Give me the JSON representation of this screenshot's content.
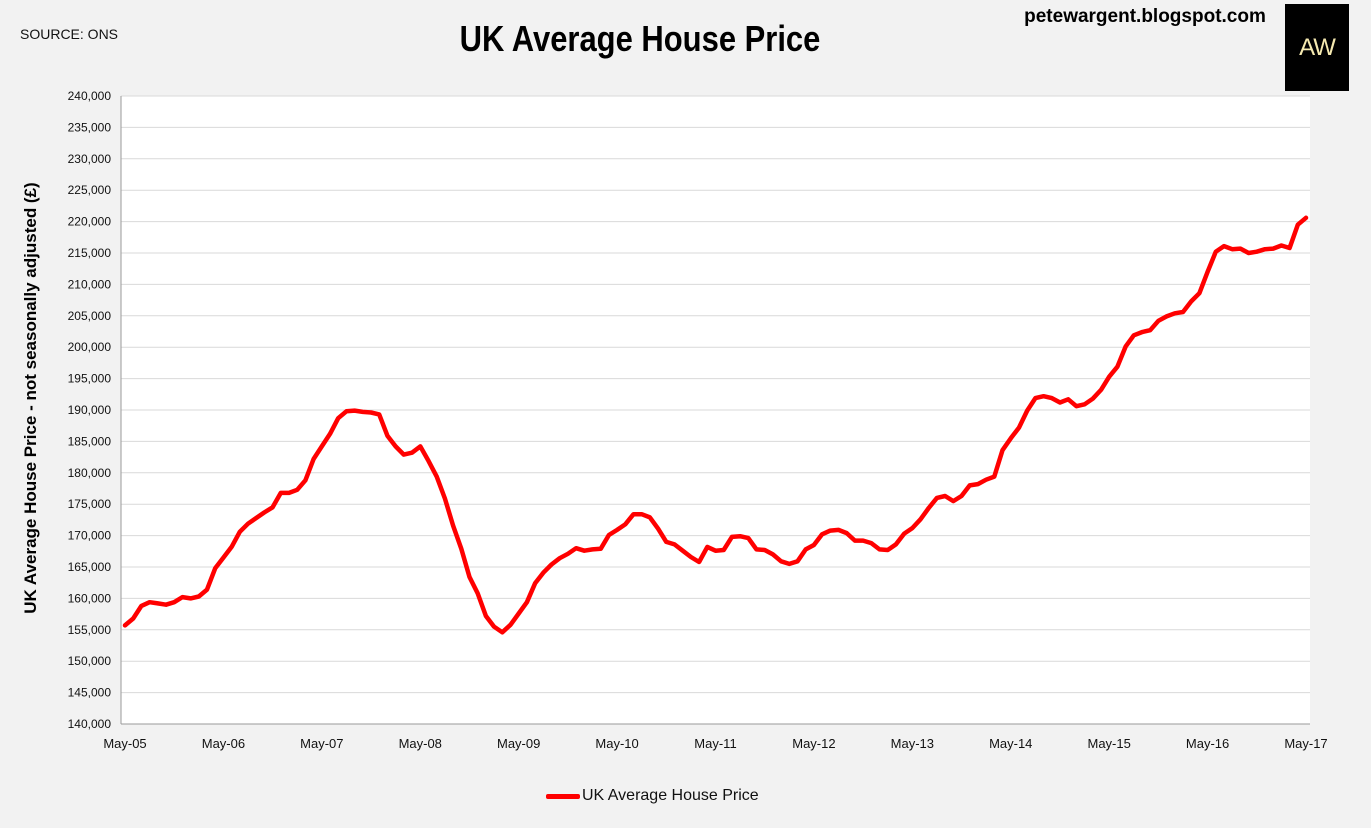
{
  "header": {
    "source": "SOURCE: ONS",
    "title": "UK Average House Price",
    "blog": "petewargent.blogspot.com",
    "logo_text": "AW"
  },
  "chart_data": {
    "type": "line",
    "title": "UK Average House Price",
    "ylabel": "UK Average House Price - not seasonally adjusted (£)",
    "xlabel": "",
    "ylim": [
      140000,
      240000
    ],
    "y_ticks": [
      "240,000",
      "235,000",
      "230,000",
      "225,000",
      "220,000",
      "215,000",
      "210,000",
      "205,000",
      "200,000",
      "195,000",
      "190,000",
      "185,000",
      "180,000",
      "175,000",
      "170,000",
      "165,000",
      "160,000",
      "155,000",
      "150,000",
      "145,000",
      "140,000"
    ],
    "x_tick_labels": [
      "May-05",
      "May-06",
      "May-07",
      "May-08",
      "May-09",
      "May-10",
      "May-11",
      "May-12",
      "May-13",
      "May-14",
      "May-15",
      "May-16",
      "May-17"
    ],
    "grid": true,
    "legend_position": "bottom",
    "color": "#ff0000",
    "series": [
      {
        "name": "UK Average House Price",
        "values": [
          155700,
          156800,
          158800,
          159400,
          159200,
          159000,
          159400,
          160200,
          160000,
          160300,
          161400,
          164800,
          166500,
          168200,
          170600,
          171900,
          172800,
          173700,
          174500,
          176800,
          176800,
          177300,
          178800,
          182200,
          184200,
          186200,
          188700,
          189800,
          189900,
          189700,
          189600,
          189300,
          185900,
          184200,
          182900,
          183200,
          184200,
          181900,
          179400,
          175900,
          171600,
          167900,
          163400,
          160800,
          157200,
          155500,
          154600,
          155800,
          157600,
          159400,
          162400,
          164100,
          165400,
          166400,
          167100,
          168000,
          167600,
          167800,
          167900,
          170100,
          170900,
          171800,
          173400,
          173400,
          172900,
          171100,
          169000,
          168600,
          167600,
          166600,
          165800,
          168200,
          167600,
          167700,
          169800,
          169900,
          169600,
          167800,
          167700,
          167000,
          165900,
          165500,
          165900,
          167800,
          168500,
          170200,
          170800,
          170900,
          170400,
          169200,
          169200,
          168800,
          167800,
          167700,
          168600,
          170300,
          171200,
          172600,
          174400,
          176000,
          176300,
          175500,
          176300,
          178000,
          178200,
          178900,
          179400,
          183600,
          185500,
          187200,
          189900,
          191900,
          192200,
          191900,
          191200,
          191700,
          190600,
          190900,
          191800,
          193200,
          195300,
          196900,
          200100,
          201900,
          202400,
          202700,
          204200,
          204900,
          205400,
          205600,
          207300,
          208600,
          212000,
          215200,
          216100,
          215600,
          215700,
          215000,
          215200,
          215600,
          215700,
          216200,
          215800,
          219500,
          220600
        ]
      }
    ]
  }
}
